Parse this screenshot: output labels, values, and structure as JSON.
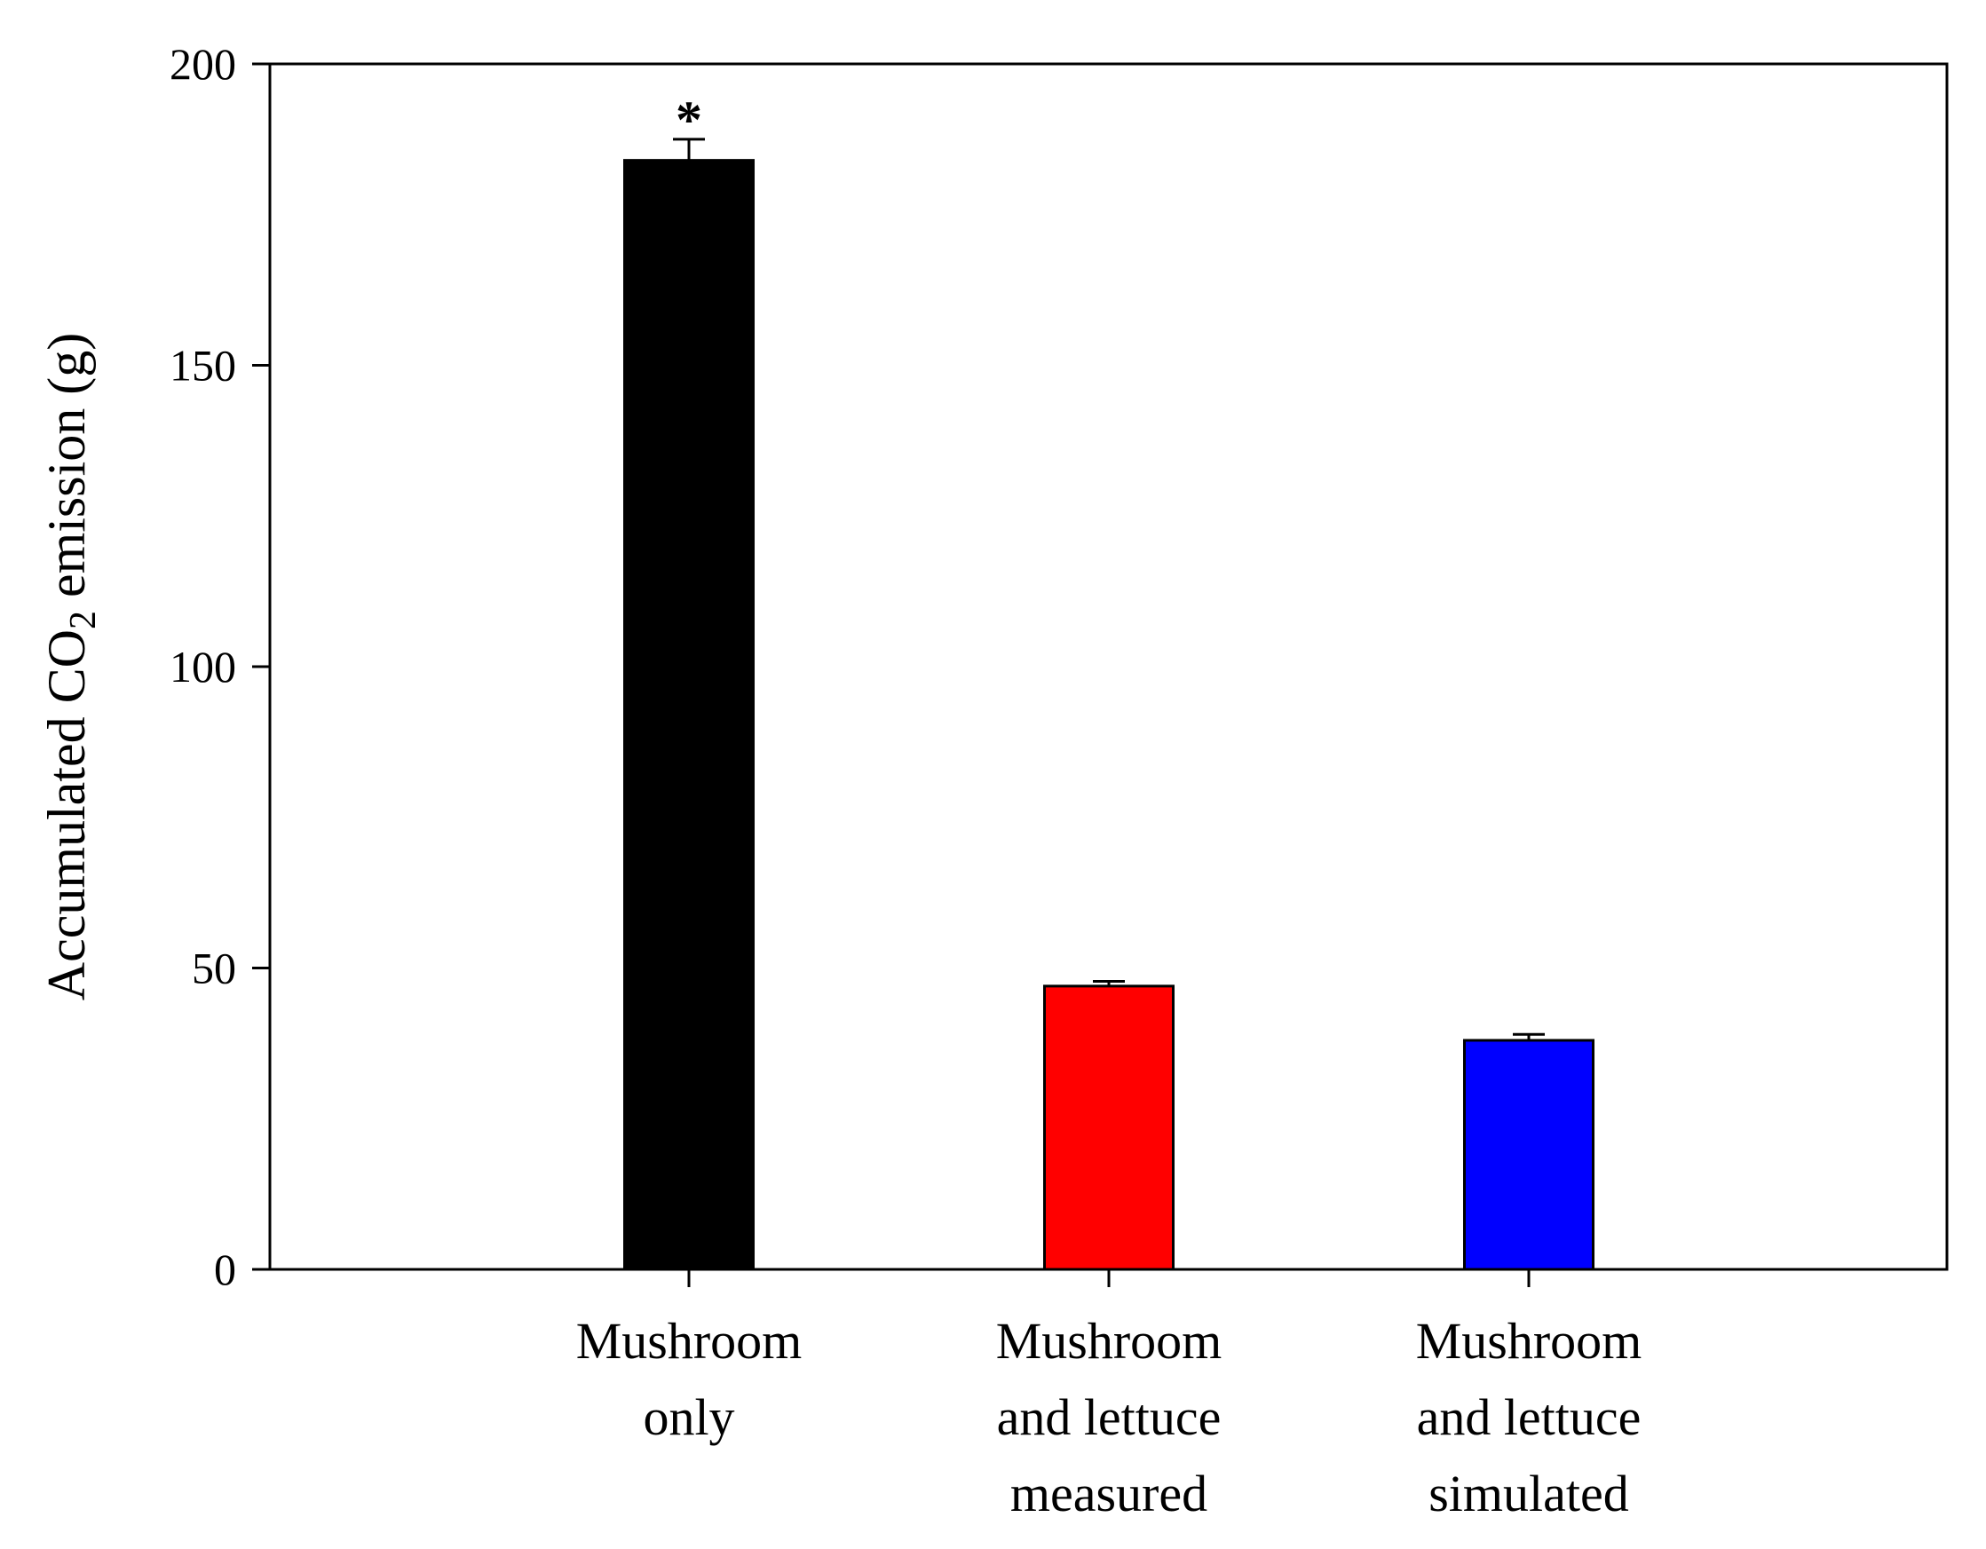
{
  "chart_data": {
    "type": "bar",
    "title": "",
    "xlabel": "",
    "ylabel": {
      "prefix": "Accumulated CO",
      "subscript": "2",
      "suffix": " emission (g)"
    },
    "ylim": [
      0,
      200
    ],
    "yticks": [
      0,
      50,
      100,
      150,
      200
    ],
    "ytick_labels": [
      "0",
      "50",
      "100",
      "150",
      "200"
    ],
    "grid": false,
    "legend": "none",
    "categories": [
      [
        "Mushroom",
        "only"
      ],
      [
        "Mushroom",
        "and lettuce",
        "measured"
      ],
      [
        "Mushroom",
        "and lettuce",
        "simulated"
      ]
    ],
    "values": [
      184,
      47,
      38
    ],
    "errors": [
      3.5,
      0.8,
      1.0
    ],
    "annotations": [
      "*",
      "",
      ""
    ],
    "colors": [
      "#000000",
      "#ff0000",
      "#0000ff"
    ]
  }
}
